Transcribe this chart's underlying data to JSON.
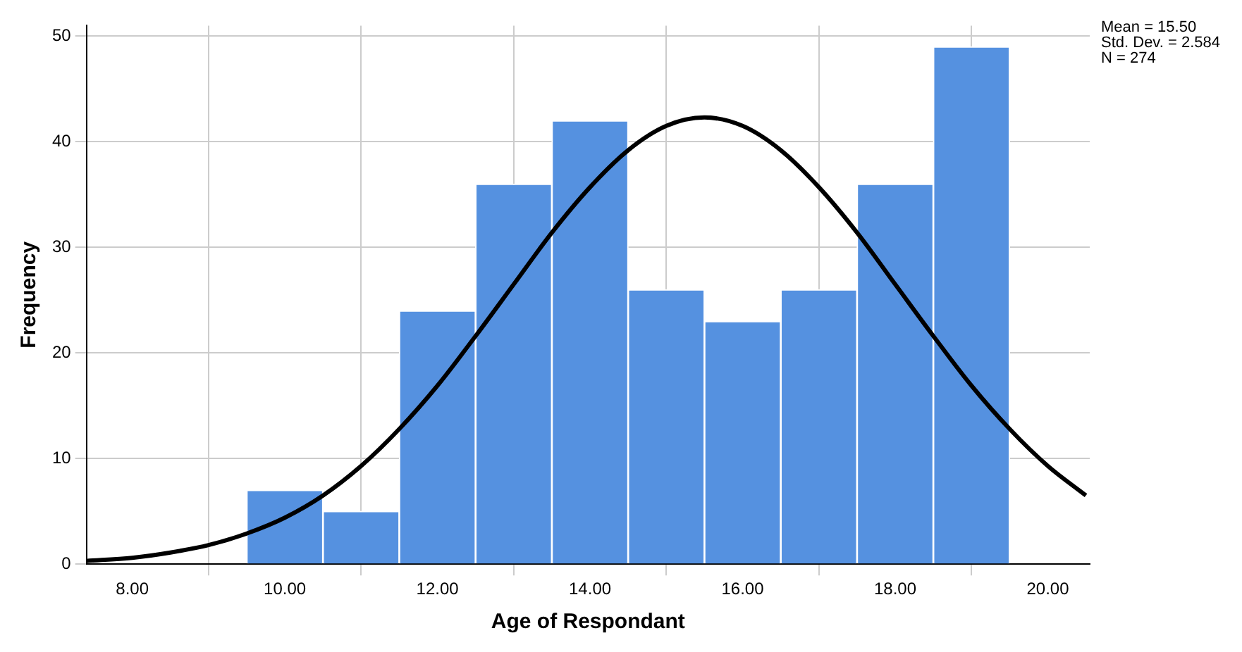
{
  "chart_data": {
    "type": "histogram",
    "xlabel": "Age of Respondant",
    "ylabel": "Frequency",
    "bins": [
      9.5,
      10.5,
      11.5,
      12.5,
      13.5,
      14.5,
      15.5,
      16.5,
      17.5,
      18.5,
      19.5
    ],
    "values": [
      7,
      5,
      24,
      36,
      42,
      26,
      23,
      26,
      36,
      49
    ],
    "color": "#5591e0",
    "series": [
      {
        "type": "line",
        "color": "#000000",
        "x": [
          7.4,
          8,
          8.5,
          9,
          9.5,
          10,
          10.5,
          11,
          11.5,
          12,
          12.5,
          13,
          13.5,
          14,
          14.5,
          15,
          15.5,
          16,
          16.5,
          17,
          17.5,
          18,
          18.5,
          19,
          19.5,
          20,
          20.5
        ],
        "values": [
          0.3,
          0.6,
          1.1,
          1.8,
          2.9,
          4.4,
          6.5,
          9.3,
          12.8,
          16.9,
          21.6,
          26.5,
          31.4,
          35.7,
          39.2,
          41.5,
          42.3,
          41.5,
          39.2,
          35.7,
          31.4,
          26.5,
          21.6,
          16.9,
          12.8,
          9.3,
          6.5
        ]
      }
    ],
    "xlim": [
      7.4,
      20.55
    ],
    "ylim": [
      0,
      51
    ],
    "xticks": [
      {
        "value": 8,
        "label": "8.00"
      },
      {
        "value": 10,
        "label": "10.00"
      },
      {
        "value": 12,
        "label": "12.00"
      },
      {
        "value": 14,
        "label": "14.00"
      },
      {
        "value": 16,
        "label": "16.00"
      },
      {
        "value": 18,
        "label": "18.00"
      },
      {
        "value": 20,
        "label": "20.00"
      }
    ],
    "yticks": [
      0,
      10,
      20,
      30,
      40,
      50
    ],
    "grid": true,
    "legend": false,
    "marker": "none",
    "annotations": [
      "Mean = 15.50",
      "Std. Dev. = 2.584",
      "N = 274"
    ]
  }
}
